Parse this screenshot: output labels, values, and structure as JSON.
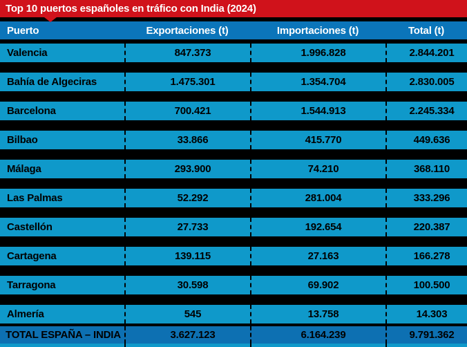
{
  "title": "Top 10 puertos españoles en tráfico con India (2024)",
  "colors": {
    "red": "#d0121b",
    "header_blue": "#0b75ba",
    "row_blue": "#0f99ca",
    "total_blue": "#0d70b2",
    "gap_black": "#000000",
    "row_text": "#000000",
    "header_text": "#ffffff"
  },
  "table": {
    "headers": {
      "puerto": "Puerto",
      "exportaciones": "Exportaciones (t)",
      "importaciones": "Importaciones (t)",
      "total": "Total (t)"
    },
    "rows": [
      {
        "puerto": "Valencia",
        "exportaciones": "847.373",
        "importaciones": "1.996.828",
        "total": "2.844.201"
      },
      {
        "puerto": "Bahía de Algeciras",
        "exportaciones": "1.475.301",
        "importaciones": "1.354.704",
        "total": "2.830.005"
      },
      {
        "puerto": "Barcelona",
        "exportaciones": "700.421",
        "importaciones": "1.544.913",
        "total": "2.245.334"
      },
      {
        "puerto": "Bilbao",
        "exportaciones": "33.866",
        "importaciones": "415.770",
        "total": "449.636"
      },
      {
        "puerto": "Málaga",
        "exportaciones": "293.900",
        "importaciones": "74.210",
        "total": "368.110"
      },
      {
        "puerto": "Las Palmas",
        "exportaciones": "52.292",
        "importaciones": "281.004",
        "total": "333.296"
      },
      {
        "puerto": "Castellón",
        "exportaciones": "27.733",
        "importaciones": "192.654",
        "total": "220.387"
      },
      {
        "puerto": "Cartagena",
        "exportaciones": "139.115",
        "importaciones": "27.163",
        "total": "166.278"
      },
      {
        "puerto": "Tarragona",
        "exportaciones": "30.598",
        "importaciones": "69.902",
        "total": "100.500"
      },
      {
        "puerto": "Almería",
        "exportaciones": "545",
        "importaciones": "13.758",
        "total": "14.303"
      }
    ],
    "total_row": {
      "puerto": "TOTAL ESPAÑA – INDIA",
      "exportaciones": "3.627.123",
      "importaciones": "6.164.239",
      "total": "9.791.362"
    }
  },
  "chart_data": {
    "type": "table",
    "title": "Top 10 puertos españoles en tráfico con India (2024)",
    "columns": [
      "Puerto",
      "Exportaciones (t)",
      "Importaciones (t)",
      "Total (t)"
    ],
    "rows": [
      [
        "Valencia",
        847373,
        1996828,
        2844201
      ],
      [
        "Bahía de Algeciras",
        1475301,
        1354704,
        2830005
      ],
      [
        "Barcelona",
        700421,
        1544913,
        2245334
      ],
      [
        "Bilbao",
        33866,
        415770,
        449636
      ],
      [
        "Málaga",
        293900,
        74210,
        368110
      ],
      [
        "Las Palmas",
        52292,
        281004,
        333296
      ],
      [
        "Castellón",
        27733,
        192654,
        220387
      ],
      [
        "Cartagena",
        139115,
        27163,
        166278
      ],
      [
        "Tarragona",
        30598,
        69902,
        100500
      ],
      [
        "Almería",
        545,
        13758,
        14303
      ]
    ],
    "total_row": [
      "TOTAL ESPAÑA – INDIA",
      3627123,
      6164239,
      9791362
    ],
    "units": "t",
    "year": "2024"
  }
}
